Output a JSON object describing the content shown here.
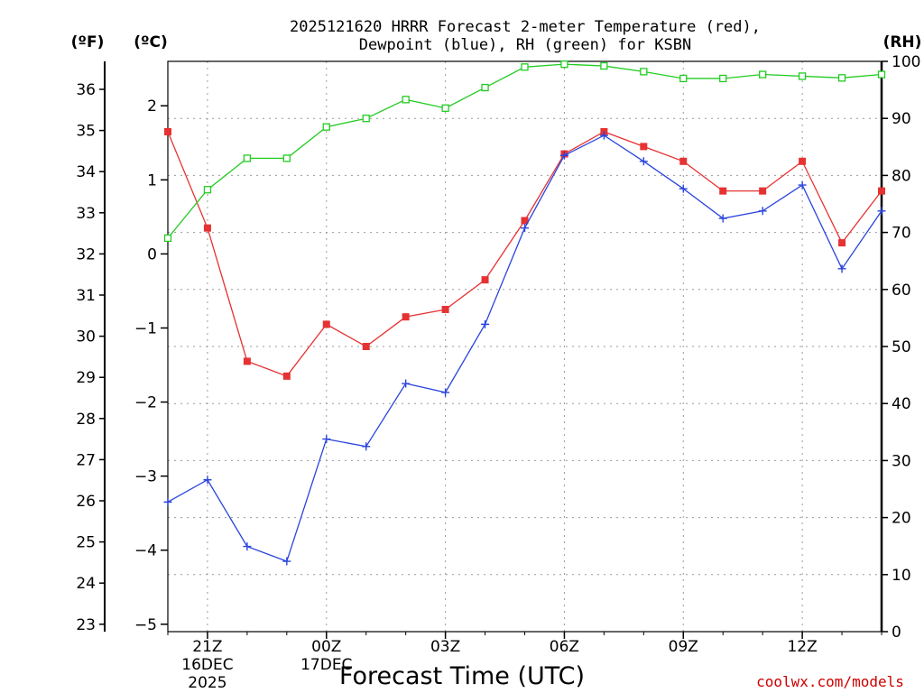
{
  "chart_data": {
    "type": "line",
    "title_line1": "2025121620 HRRR Forecast 2-meter Temperature (red),",
    "title_line2": "Dewpoint (blue), RH (green) for KSBN",
    "xlabel": "Forecast Time (UTC)",
    "credit": "coolwx.com/models",
    "unit_f": "(ºF)",
    "unit_c": "(ºC)",
    "unit_rh": "(RH)",
    "grid": true,
    "x_hours": [
      20,
      21,
      22,
      23,
      24,
      25,
      26,
      27,
      28,
      29,
      30,
      31,
      32,
      33,
      34,
      35,
      36,
      37,
      38
    ],
    "x_ticks": [
      {
        "hour": 21,
        "line1": "21Z",
        "line2": "16DEC",
        "line3": "2025"
      },
      {
        "hour": 24,
        "line1": "00Z",
        "line2": "17DEC",
        "line3": ""
      },
      {
        "hour": 27,
        "line1": "03Z",
        "line2": "",
        "line3": ""
      },
      {
        "hour": 30,
        "line1": "06Z",
        "line2": "",
        "line3": ""
      },
      {
        "hour": 33,
        "line1": "09Z",
        "line2": "",
        "line3": ""
      },
      {
        "hour": 36,
        "line1": "12Z",
        "line2": "",
        "line3": ""
      }
    ],
    "xlim": [
      20,
      38
    ],
    "celsius_axis": {
      "range": [
        -5.1,
        2.6
      ],
      "ticks": [
        -5,
        -4,
        -3,
        -2,
        -1,
        0,
        1,
        2
      ]
    },
    "fahrenheit_axis": {
      "ticks": [
        23,
        24,
        25,
        26,
        27,
        28,
        29,
        30,
        31,
        32,
        33,
        34,
        35,
        36
      ]
    },
    "rh_axis": {
      "range": [
        0,
        100
      ],
      "ticks": [
        0,
        10,
        20,
        30,
        40,
        50,
        60,
        70,
        80,
        90,
        100
      ]
    },
    "series": [
      {
        "name": "Temperature",
        "color": "#e63232",
        "marker": "filled-square",
        "axis": "celsius",
        "values": [
          1.65,
          0.35,
          -1.45,
          -1.65,
          -0.95,
          -1.25,
          -0.85,
          -0.75,
          -0.35,
          0.45,
          1.35,
          1.65,
          1.45,
          1.25,
          0.85,
          0.85,
          1.25,
          0.15,
          0.85
        ]
      },
      {
        "name": "Dewpoint",
        "color": "#2a44dd",
        "marker": "plus",
        "axis": "celsius",
        "values": [
          -3.35,
          -3.05,
          -3.95,
          -4.15,
          -2.5,
          -2.6,
          -1.75,
          -1.87,
          -0.95,
          0.35,
          1.33,
          1.6,
          1.25,
          0.88,
          0.48,
          0.58,
          0.93,
          -0.2,
          0.58
        ]
      },
      {
        "name": "RH",
        "color": "#22cc22",
        "marker": "open-square",
        "axis": "rh",
        "values": [
          69,
          77.5,
          83,
          83,
          88.5,
          90,
          93.3,
          91.8,
          95.4,
          99,
          99.5,
          99.2,
          98.2,
          97,
          97,
          97.7,
          97.4,
          97.1,
          97.7
        ]
      }
    ]
  }
}
